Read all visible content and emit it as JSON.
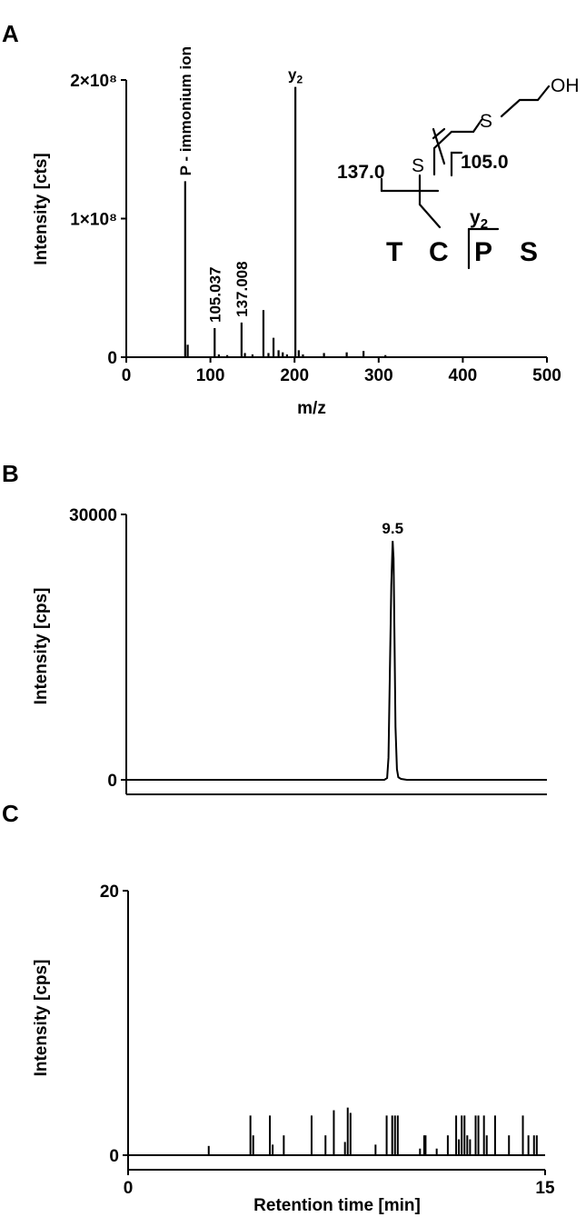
{
  "chart_data": [
    {
      "panel": "A",
      "type": "bar",
      "ylabel": "Intensity [cts]",
      "xlabel": "m/z",
      "xlim": [
        0,
        500
      ],
      "ylim": [
        0,
        200000000
      ],
      "xticks": [
        0,
        100,
        200,
        300,
        400,
        500
      ],
      "yticks": [
        {
          "value": 0,
          "label": "0"
        },
        {
          "value": 100000000,
          "label": "1×10⁸"
        },
        {
          "value": 200000000,
          "label": "2×10⁸"
        }
      ],
      "peaks": {
        "x": [
          70,
          73,
          105.037,
          110,
          120,
          137.008,
          141,
          150,
          163,
          169,
          175,
          181,
          186,
          191,
          201,
          205,
          210,
          235,
          262,
          282,
          308
        ],
        "y": [
          127000000,
          9000000,
          21000000,
          2000000,
          1500000,
          25000000,
          3000000,
          2000000,
          34000000,
          3000000,
          14000000,
          5000000,
          3500000,
          2000000,
          195000000,
          5000000,
          2000000,
          3000000,
          3500000,
          4500000,
          1500000
        ]
      },
      "annotations": [
        {
          "x": 70,
          "text": "P - immonium ion"
        },
        {
          "x": 105.037,
          "text": "105.037"
        },
        {
          "x": 137.008,
          "text": "137.008"
        },
        {
          "x": 201,
          "text": "y",
          "subscript": "2"
        }
      ],
      "structure": {
        "fragment_left": "137.0",
        "fragment_right": "105.0",
        "sulfur_1": "S",
        "sulfur_2": "S",
        "hydroxyl": "OH",
        "ion": "y",
        "ion_subscript": "2",
        "residues": [
          "T",
          "C",
          "P",
          "S"
        ]
      }
    },
    {
      "panel": "B",
      "type": "line",
      "ylabel": "Intensity [cps]",
      "xlim": [
        0,
        15
      ],
      "ylim": [
        0,
        30000
      ],
      "yticks": [
        0,
        30000
      ],
      "peak_label": "9.5",
      "series": {
        "x": [
          0,
          9.2,
          9.3,
          9.35,
          9.4,
          9.45,
          9.5,
          9.53,
          9.56,
          9.6,
          9.65,
          9.7,
          9.75,
          9.8,
          10.0,
          15
        ],
        "y": [
          0,
          0,
          200,
          2500,
          12000,
          22000,
          27000,
          25000,
          17000,
          6000,
          1200,
          300,
          200,
          100,
          0,
          0
        ]
      }
    },
    {
      "panel": "C",
      "type": "bar",
      "ylabel": "Intensity [cps]",
      "xlabel": "Retention time [min]",
      "xlim": [
        0,
        15
      ],
      "ylim": [
        0,
        20
      ],
      "xticks": [
        0,
        15
      ],
      "yticks": [
        0,
        20
      ],
      "peaks": {
        "x": [
          2.9,
          4.4,
          4.5,
          5.1,
          5.2,
          5.6,
          6.6,
          7.1,
          7.4,
          7.8,
          7.9,
          8.0,
          8.9,
          9.3,
          9.5,
          9.6,
          9.7,
          10.5,
          10.65,
          10.7,
          11.1,
          11.5,
          11.8,
          11.9,
          12.0,
          12.1,
          12.2,
          12.3,
          12.5,
          12.6,
          12.8,
          12.9,
          13.2,
          13.7,
          14.2,
          14.4,
          14.6,
          14.7
        ],
        "y": [
          0.7,
          3.0,
          1.5,
          3.0,
          0.8,
          1.5,
          3.0,
          1.5,
          3.4,
          1.0,
          3.6,
          3.2,
          0.8,
          3.0,
          3.0,
          3.0,
          3.0,
          0.5,
          1.5,
          1.5,
          0.5,
          1.5,
          3.0,
          1.2,
          3.0,
          3.0,
          1.5,
          1.2,
          3.0,
          3.0,
          3.0,
          1.5,
          3.0,
          1.5,
          3.0,
          1.5,
          1.5,
          1.5
        ]
      }
    }
  ]
}
